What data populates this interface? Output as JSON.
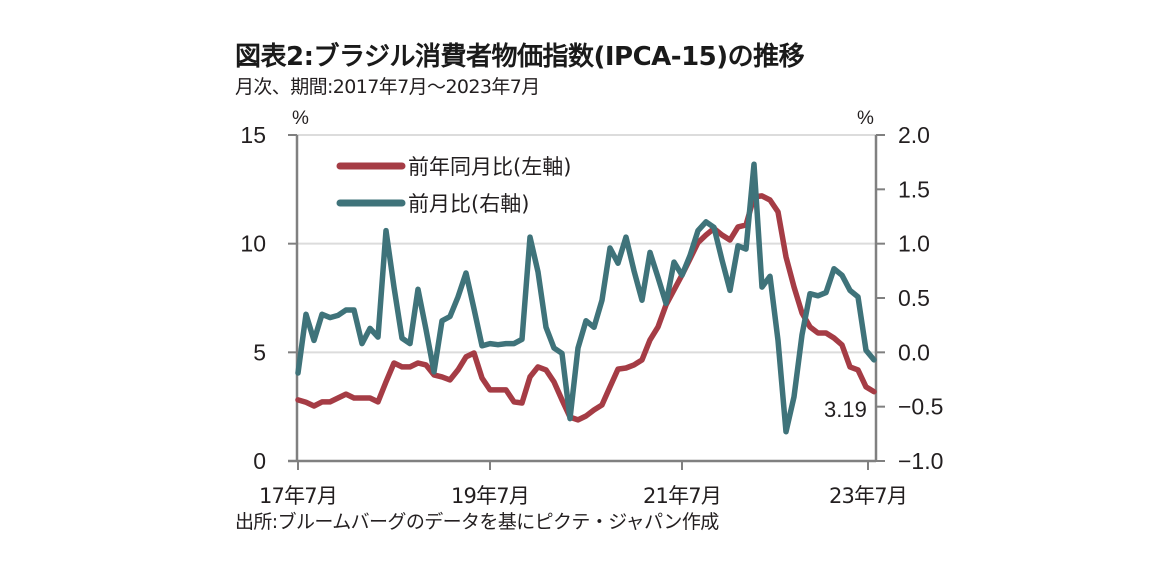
{
  "title": "図表2:ブラジル消費者物価指数(IPCA-15)の推移",
  "subtitle": "月次、期間:2017年7月～2023年7月",
  "footnote": "出所:ブルームバーグのデータを基にピクテ・ジャパン作成",
  "colors": {
    "yoy": "#a53c45",
    "mom": "#3f737a",
    "axis": "#808080",
    "grid": "#dcdcdc"
  },
  "chart_data": {
    "type": "line",
    "title": "図表2:ブラジル消費者物価指数(IPCA-15)の推移",
    "subtitle": "月次、期間:2017年7月～2023年7月",
    "xlabel": "",
    "x_start": "2017-07",
    "x_end": "2023-07",
    "x_ticks": [
      "17年7月",
      "19年7月",
      "21年7月",
      "23年7月"
    ],
    "x_tick_indices": [
      0,
      24,
      48,
      72
    ],
    "y_left": {
      "unit": "%",
      "ylim": [
        0,
        15
      ],
      "ticks": [
        "0",
        "5",
        "10",
        "15"
      ],
      "tick_values": [
        0,
        5,
        10,
        15
      ]
    },
    "y_right": {
      "unit": "%",
      "ylim": [
        -1.0,
        2.0
      ],
      "ticks": [
        "−1.0",
        "−0.5",
        "0.0",
        "0.5",
        "1.0",
        "1.5",
        "2.0"
      ],
      "tick_values": [
        -1.0,
        -0.5,
        0.0,
        0.5,
        1.0,
        1.5,
        2.0
      ]
    },
    "grid": true,
    "legend_position": "top-left",
    "series": [
      {
        "name": "前年同月比(左軸)",
        "axis": "left",
        "color_key": "yoy",
        "values": [
          2.81,
          2.7,
          2.53,
          2.72,
          2.72,
          2.9,
          3.08,
          2.9,
          2.9,
          2.9,
          2.72,
          3.64,
          4.51,
          4.33,
          4.33,
          4.51,
          4.42,
          3.96,
          3.87,
          3.73,
          4.19,
          4.79,
          4.97,
          3.82,
          3.27,
          3.27,
          3.27,
          2.72,
          2.67,
          3.87,
          4.33,
          4.19,
          3.64,
          2.81,
          2.02,
          1.89,
          2.07,
          2.35,
          2.58,
          3.41,
          4.23,
          4.28,
          4.42,
          4.65,
          5.57,
          6.17,
          7.18,
          7.87,
          8.56,
          9.3,
          10.05,
          10.4,
          10.7,
          10.4,
          10.17,
          10.77,
          10.86,
          12.15,
          12.2,
          12.01,
          11.46,
          9.39,
          8.01,
          6.81,
          6.17,
          5.89,
          5.89,
          5.66,
          5.34,
          4.33,
          4.19,
          3.41,
          3.19
        ]
      },
      {
        "name": "前月比(右軸)",
        "axis": "right",
        "color_key": "mom",
        "values": [
          -0.19,
          0.35,
          0.11,
          0.35,
          0.32,
          0.34,
          0.39,
          0.39,
          0.08,
          0.22,
          0.14,
          1.12,
          0.6,
          0.13,
          0.08,
          0.58,
          0.21,
          -0.18,
          0.29,
          0.33,
          0.51,
          0.73,
          0.4,
          0.06,
          0.08,
          0.07,
          0.08,
          0.08,
          0.12,
          1.06,
          0.74,
          0.23,
          0.04,
          -0.01,
          -0.61,
          0.04,
          0.29,
          0.23,
          0.48,
          0.96,
          0.82,
          1.06,
          0.75,
          0.48,
          0.92,
          0.69,
          0.45,
          0.83,
          0.71,
          0.89,
          1.12,
          1.2,
          1.15,
          0.85,
          0.57,
          0.98,
          0.95,
          1.73,
          0.6,
          0.7,
          0.11,
          -0.73,
          -0.41,
          0.16,
          0.54,
          0.52,
          0.55,
          0.77,
          0.71,
          0.57,
          0.51,
          0.02,
          -0.07
        ]
      }
    ],
    "annotations": [
      {
        "text": "3.19",
        "series": "前年同月比(左軸)",
        "index": 72
      }
    ]
  }
}
